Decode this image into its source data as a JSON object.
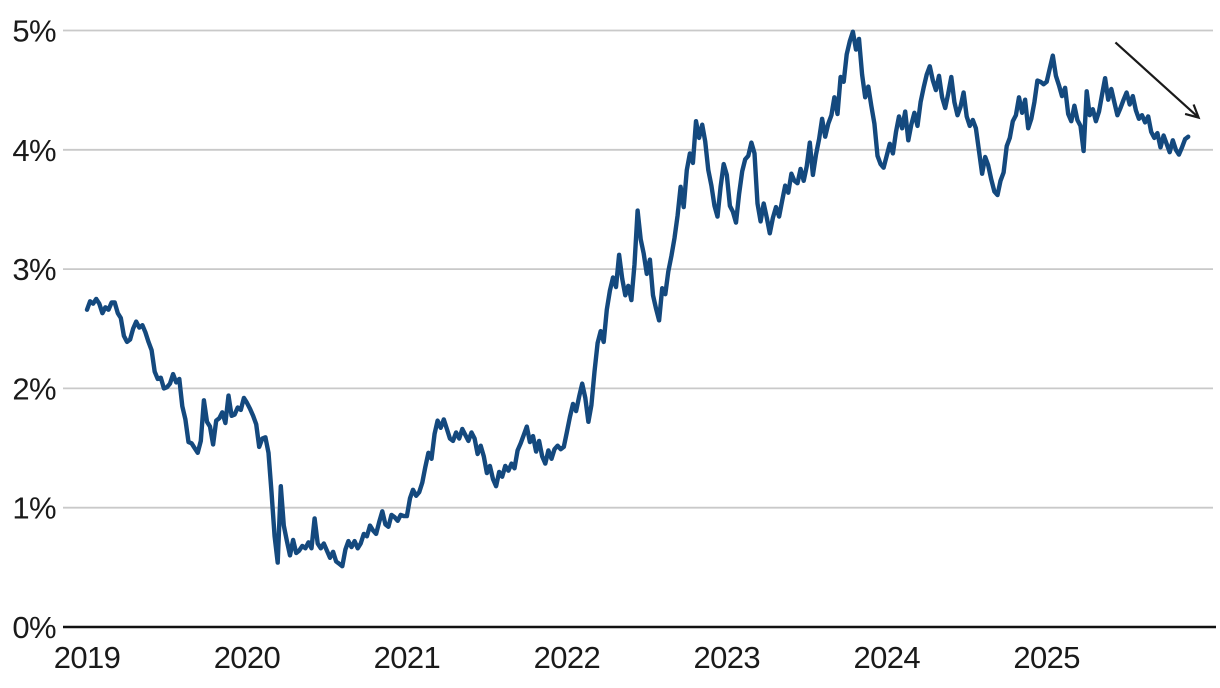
{
  "chart_data": {
    "type": "line",
    "title": "",
    "xlabel": "",
    "ylabel": "",
    "grid": "horizontal",
    "legend": "none",
    "ylim": [
      0,
      5
    ],
    "xlim": [
      2018.85,
      2026.04
    ],
    "y_ticks": [
      {
        "value": 0,
        "label": "0%"
      },
      {
        "value": 1,
        "label": "1%"
      },
      {
        "value": 2,
        "label": "2%"
      },
      {
        "value": 3,
        "label": "3%"
      },
      {
        "value": 4,
        "label": "4%"
      },
      {
        "value": 5,
        "label": "5%"
      }
    ],
    "x_ticks": [
      {
        "value": 2019,
        "label": "2019"
      },
      {
        "value": 2020,
        "label": "2020"
      },
      {
        "value": 2021,
        "label": "2021"
      },
      {
        "value": 2022,
        "label": "2022"
      },
      {
        "value": 2023,
        "label": "2023"
      },
      {
        "value": 2024,
        "label": "2024"
      },
      {
        "value": 2025,
        "label": "2025"
      }
    ],
    "series": [
      {
        "name": "yield-percent-weekly",
        "color": "#14497E",
        "x_start": 2019.0,
        "x_step_years": 0.019231,
        "values": [
          2.66,
          2.73,
          2.71,
          2.75,
          2.71,
          2.63,
          2.68,
          2.66,
          2.72,
          2.72,
          2.63,
          2.59,
          2.44,
          2.39,
          2.41,
          2.5,
          2.56,
          2.51,
          2.53,
          2.47,
          2.39,
          2.32,
          2.14,
          2.08,
          2.09,
          2.0,
          2.01,
          2.04,
          2.12,
          2.05,
          2.08,
          1.85,
          1.74,
          1.55,
          1.54,
          1.5,
          1.46,
          1.56,
          1.9,
          1.72,
          1.68,
          1.53,
          1.73,
          1.75,
          1.8,
          1.71,
          1.94,
          1.77,
          1.78,
          1.84,
          1.82,
          1.92,
          1.88,
          1.83,
          1.77,
          1.7,
          1.51,
          1.58,
          1.59,
          1.46,
          1.13,
          0.76,
          0.54,
          1.18,
          0.85,
          0.72,
          0.6,
          0.73,
          0.62,
          0.64,
          0.68,
          0.66,
          0.71,
          0.66,
          0.91,
          0.7,
          0.66,
          0.7,
          0.64,
          0.58,
          0.63,
          0.55,
          0.53,
          0.51,
          0.65,
          0.72,
          0.67,
          0.72,
          0.66,
          0.7,
          0.78,
          0.76,
          0.85,
          0.81,
          0.78,
          0.88,
          0.97,
          0.86,
          0.84,
          0.94,
          0.92,
          0.89,
          0.94,
          0.93,
          0.93,
          1.08,
          1.15,
          1.1,
          1.13,
          1.21,
          1.34,
          1.46,
          1.41,
          1.62,
          1.73,
          1.67,
          1.74,
          1.66,
          1.58,
          1.56,
          1.63,
          1.58,
          1.66,
          1.61,
          1.56,
          1.63,
          1.58,
          1.45,
          1.52,
          1.43,
          1.29,
          1.35,
          1.24,
          1.18,
          1.3,
          1.26,
          1.35,
          1.31,
          1.37,
          1.33,
          1.48,
          1.54,
          1.61,
          1.68,
          1.55,
          1.6,
          1.47,
          1.56,
          1.43,
          1.37,
          1.48,
          1.41,
          1.49,
          1.52,
          1.49,
          1.51,
          1.63,
          1.76,
          1.87,
          1.81,
          1.93,
          2.04,
          1.92,
          1.72,
          1.86,
          2.14,
          2.38,
          2.48,
          2.39,
          2.66,
          2.82,
          2.93,
          2.85,
          3.12,
          2.92,
          2.78,
          2.86,
          2.74,
          3.04,
          3.49,
          3.25,
          3.13,
          2.96,
          3.08,
          2.78,
          2.67,
          2.57,
          2.84,
          2.79,
          2.98,
          3.11,
          3.26,
          3.45,
          3.69,
          3.52,
          3.83,
          3.97,
          3.89,
          4.24,
          4.1,
          4.21,
          4.07,
          3.83,
          3.7,
          3.53,
          3.44,
          3.69,
          3.88,
          3.79,
          3.53,
          3.48,
          3.39,
          3.63,
          3.82,
          3.92,
          3.95,
          4.06,
          3.97,
          3.55,
          3.4,
          3.55,
          3.43,
          3.3,
          3.43,
          3.52,
          3.44,
          3.57,
          3.7,
          3.64,
          3.8,
          3.74,
          3.72,
          3.84,
          3.74,
          3.86,
          4.06,
          3.79,
          3.96,
          4.09,
          4.26,
          4.11,
          4.22,
          4.29,
          4.44,
          4.3,
          4.61,
          4.57,
          4.8,
          4.91,
          4.99,
          4.84,
          4.93,
          4.63,
          4.44,
          4.53,
          4.37,
          4.22,
          3.95,
          3.88,
          3.85,
          3.95,
          4.05,
          3.97,
          4.15,
          4.28,
          4.18,
          4.32,
          4.08,
          4.21,
          4.31,
          4.2,
          4.4,
          4.52,
          4.63,
          4.7,
          4.58,
          4.5,
          4.62,
          4.44,
          4.35,
          4.47,
          4.61,
          4.4,
          4.29,
          4.36,
          4.48,
          4.28,
          4.2,
          4.25,
          4.18,
          3.99,
          3.8,
          3.94,
          3.87,
          3.75,
          3.65,
          3.62,
          3.74,
          3.81,
          4.03,
          4.1,
          4.24,
          4.29,
          4.44,
          4.31,
          4.42,
          4.18,
          4.26,
          4.4,
          4.58,
          4.57,
          4.55,
          4.57,
          4.68,
          4.79,
          4.62,
          4.54,
          4.45,
          4.52,
          4.3,
          4.24,
          4.37,
          4.25,
          4.2,
          3.99,
          4.49,
          4.29,
          4.34,
          4.24,
          4.32,
          4.46,
          4.6,
          4.42,
          4.51,
          4.4,
          4.29,
          4.35,
          4.42,
          4.48,
          4.38,
          4.45,
          4.33,
          4.26,
          4.29,
          4.23,
          4.28,
          4.15,
          4.1,
          4.14,
          4.02,
          4.12,
          4.05,
          3.98,
          4.08,
          4.0,
          3.96,
          4.02,
          4.09,
          4.11
        ]
      }
    ],
    "annotations": [
      {
        "type": "arrow",
        "direction": "down-right",
        "from": [
          2025.43,
          4.9
        ],
        "to": [
          2025.95,
          4.27
        ]
      }
    ]
  },
  "style": {
    "line_color": "#14497E",
    "grid_color": "#c9c9c9",
    "axis_color": "#111111",
    "text_color": "#1a1a1a",
    "arrow_color": "#1a1a1a",
    "background": "#ffffff"
  }
}
